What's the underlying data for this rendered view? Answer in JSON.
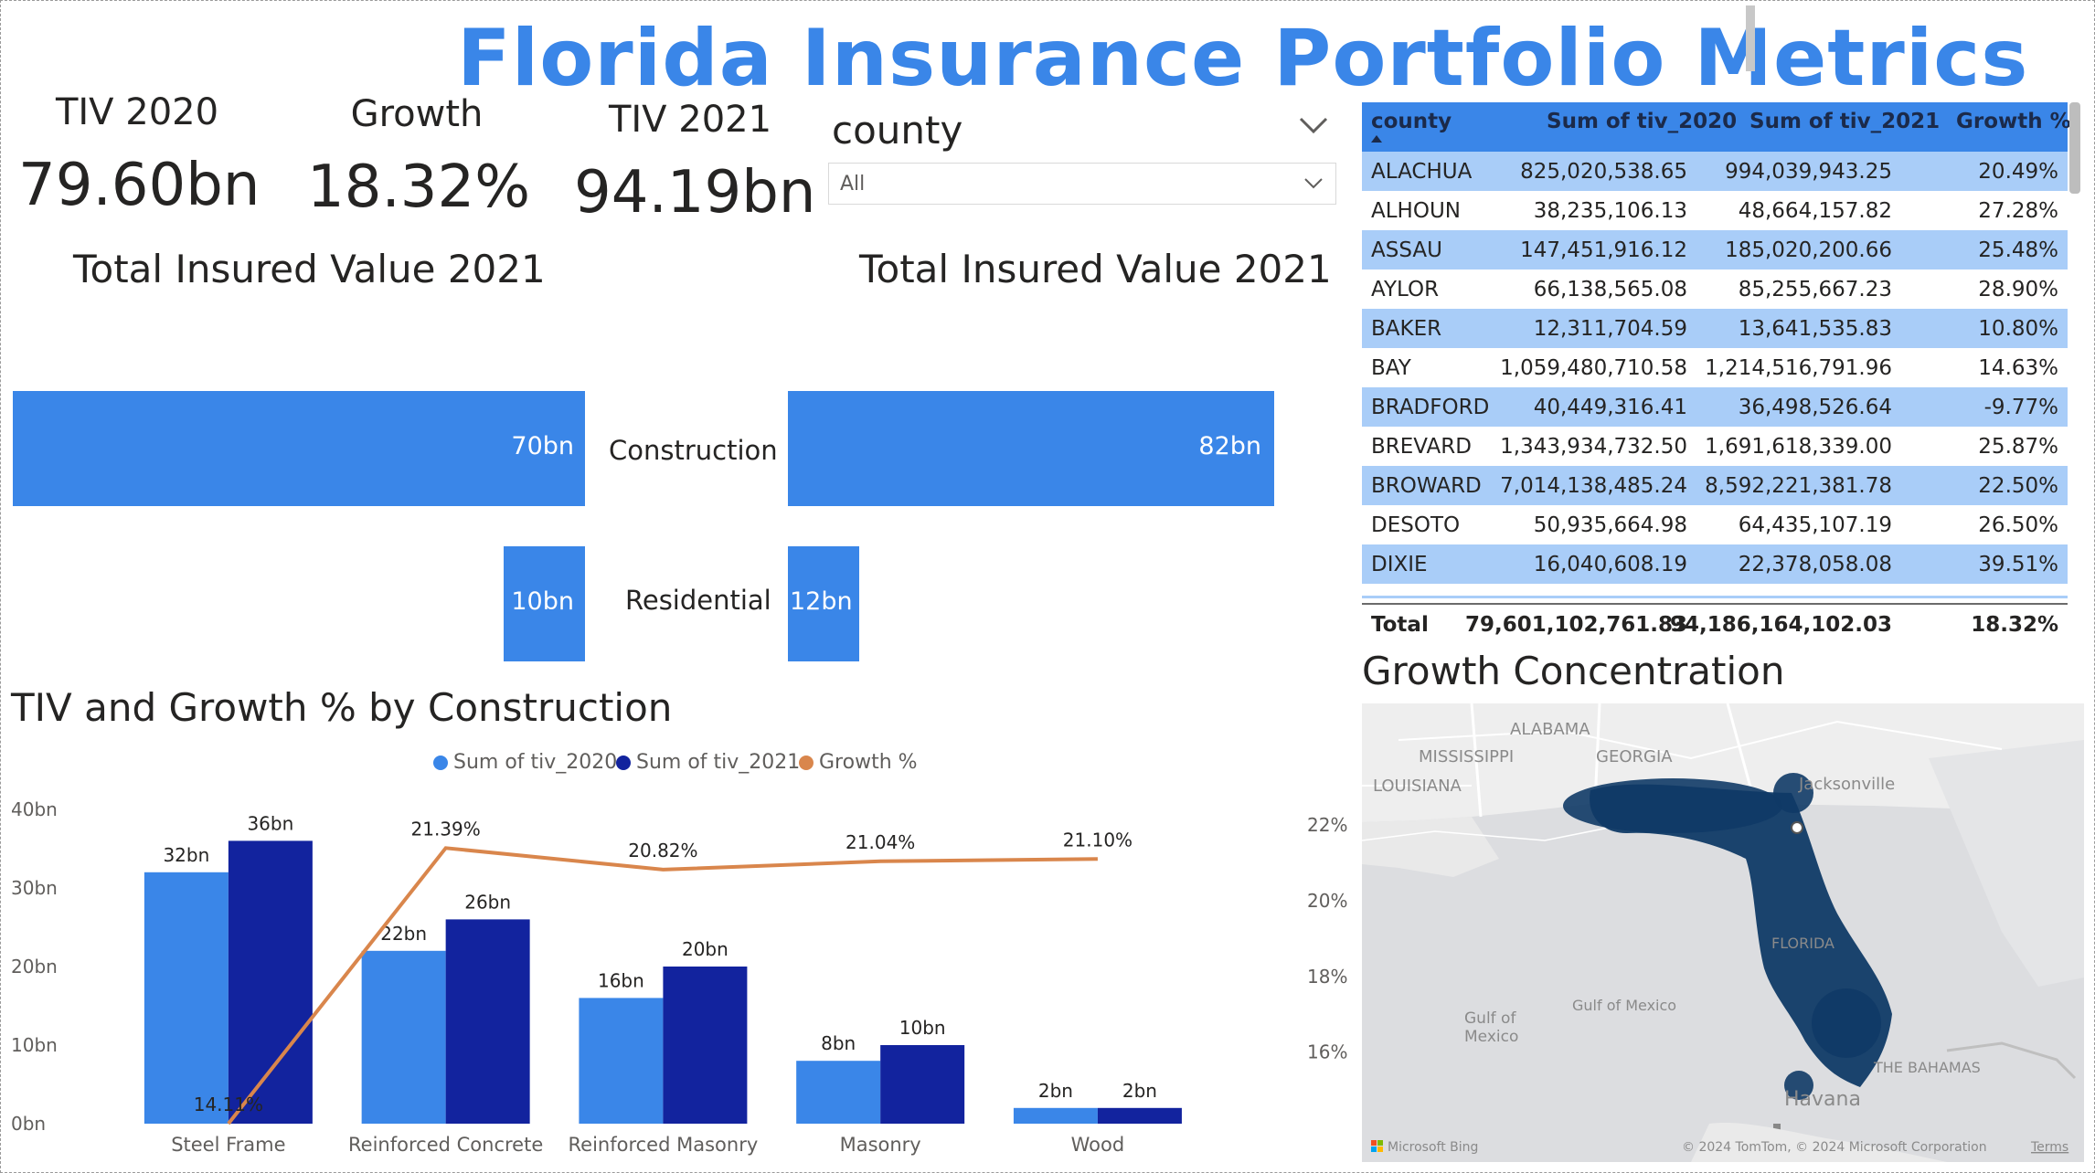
{
  "title": "Florida Insurance Portfolio Metrics",
  "kpis": [
    {
      "label": "TIV 2020",
      "value": "79.60bn"
    },
    {
      "label": "Growth",
      "value": "18.32%"
    },
    {
      "label": "TIV 2021",
      "value": "94.19bn"
    }
  ],
  "slicer": {
    "title": "county",
    "value": "All"
  },
  "bar_section": {
    "left_title": "Total Insured Value 2021",
    "right_title": "Total Insured Value 2021",
    "categories": [
      "Construction",
      "Residential"
    ],
    "left_values": [
      70,
      10
    ],
    "right_values": [
      82,
      12
    ],
    "left_labels": [
      "70bn",
      "10bn"
    ],
    "right_labels": [
      "82bn",
      "12bn"
    ]
  },
  "table": {
    "columns": [
      "county",
      "Sum of tiv_2020",
      "Sum of tiv_2021",
      "Growth %"
    ],
    "rows": [
      [
        "ALACHUA",
        "825,020,538.65",
        "994,039,943.25",
        "20.49%"
      ],
      [
        "ALHOUN",
        "38,235,106.13",
        "48,664,157.82",
        "27.28%"
      ],
      [
        "ASSAU",
        "147,451,916.12",
        "185,020,200.66",
        "25.48%"
      ],
      [
        "AYLOR",
        "66,138,565.08",
        "85,255,667.23",
        "28.90%"
      ],
      [
        "BAKER",
        "12,311,704.59",
        "13,641,535.83",
        "10.80%"
      ],
      [
        "BAY",
        "1,059,480,710.58",
        "1,214,516,791.96",
        "14.63%"
      ],
      [
        "BRADFORD",
        "40,449,316.41",
        "36,498,526.64",
        "-9.77%"
      ],
      [
        "BREVARD",
        "1,343,934,732.50",
        "1,691,618,339.00",
        "25.87%"
      ],
      [
        "BROWARD",
        "7,014,138,485.24",
        "8,592,221,381.78",
        "22.50%"
      ],
      [
        "DESOTO",
        "50,935,664.98",
        "64,435,107.19",
        "26.50%"
      ],
      [
        "DIXIE",
        "16,040,608.19",
        "22,378,058.08",
        "39.51%"
      ]
    ],
    "total": [
      "Total",
      "79,601,102,761.83",
      "94,186,164,102.03",
      "18.32%"
    ]
  },
  "map": {
    "title": "Growth Concentration",
    "labels": [
      "ALABAMA",
      "MISSISSIPPI",
      "GEORGIA",
      "LOUISIANA",
      "Jacksonville",
      "FLORIDA",
      "Gulf of Mexico",
      "Gulf of\nMexico",
      "THE BAHAMAS",
      "Havana"
    ],
    "attribution": "© 2024 TomTom, © 2024 Microsoft Corporation",
    "terms": "Terms",
    "bing": "Microsoft Bing"
  },
  "combo_chart": {
    "title": "TIV and Growth % by Construction",
    "legend": [
      "Sum of tiv_2020",
      "Sum of tiv_2021",
      "Growth %"
    ],
    "colors": {
      "tiv_2020": "#3a86e8",
      "tiv_2021": "#12239e",
      "growth": "#d9864c"
    }
  },
  "chart_data": {
    "type": "bar",
    "title": "TIV and Growth % by Construction",
    "categories": [
      "Steel Frame",
      "Reinforced Concrete",
      "Reinforced Masonry",
      "Masonry",
      "Wood"
    ],
    "series": [
      {
        "name": "Sum of tiv_2020",
        "type": "bar",
        "values": [
          32,
          22,
          16,
          8,
          2
        ],
        "labels": [
          "32bn",
          "22bn",
          "16bn",
          "8bn",
          "2bn"
        ]
      },
      {
        "name": "Sum of tiv_2021",
        "type": "bar",
        "values": [
          36,
          26,
          20,
          10,
          2
        ],
        "labels": [
          "36bn",
          "26bn",
          "20bn",
          "10bn",
          "2bn"
        ]
      },
      {
        "name": "Growth %",
        "type": "line",
        "axis": "right",
        "values": [
          14.11,
          21.39,
          20.82,
          21.04,
          21.1
        ],
        "labels": [
          "14.11%",
          "21.39%",
          "20.82%",
          "21.04%",
          "21.10%"
        ]
      }
    ],
    "y_left": {
      "ticks": [
        "0bn",
        "10bn",
        "20bn",
        "30bn",
        "40bn"
      ],
      "range": [
        0,
        40
      ]
    },
    "y_right": {
      "ticks": [
        "16%",
        "18%",
        "20%",
        "22%"
      ],
      "range": [
        14.11,
        22.7
      ]
    },
    "legend_position": "top-center"
  }
}
